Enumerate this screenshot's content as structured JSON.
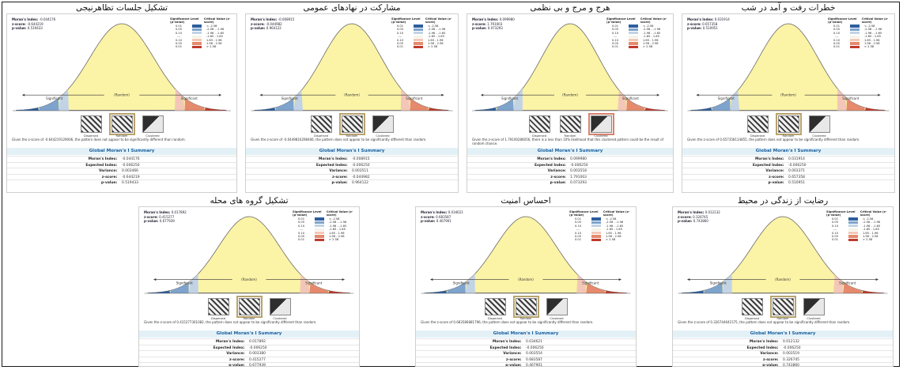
{
  "chart_data": [
    {
      "type": "other",
      "title": "خطرات رفت و آمد در شب",
      "stats": {
        "moransIndex": "0.031914",
        "zscore": "0.657358",
        "pvalue": "0.510951"
      },
      "legend": {
        "header_sig": "Significance Level (p-value)",
        "header_crit": "Critical Value (z-score)",
        "rows": [
          [
            "0.01",
            "< -2.58"
          ],
          [
            "0.05",
            "-2.58 - -1.96"
          ],
          [
            "0.10",
            "-1.96 - -1.65"
          ],
          [
            "---",
            "-1.65 - 1.65"
          ],
          [
            "0.10",
            "1.65 - 1.96"
          ],
          [
            "0.05",
            "1.96 - 2.58"
          ],
          [
            "0.01",
            "> 2.58"
          ]
        ]
      },
      "curve": {
        "significant_left": "Significant",
        "random": "(Random)",
        "significant_right": "Significant"
      },
      "maps": {
        "dispersed": "Dispersed",
        "random": "Random",
        "clustered": "Clustered",
        "selected": "random"
      },
      "note": "Given the z-score of 0.657358114855, the pattern does not appear to be significantly different than random.",
      "summary": {
        "title": "Global Moran's I Summary",
        "rows": [
          [
            "Moran's Index:",
            "0.031914"
          ],
          [
            "Expected Index:",
            "-0.006250"
          ],
          [
            "Variance:",
            "0.003371"
          ],
          [
            "z-score:",
            "0.657358"
          ],
          [
            "p-value:",
            "0.510951"
          ]
        ]
      }
    },
    {
      "type": "other",
      "title": "هرج و مرج و بی نظمی",
      "stats": {
        "moransIndex": "0.099980",
        "zscore": "1.791003",
        "pvalue": "0.073293"
      },
      "legend": {
        "header_sig": "Significance Level (p-value)",
        "header_crit": "Critical Value (z-score)",
        "rows": [
          [
            "0.01",
            "< -2.58"
          ],
          [
            "0.05",
            "-2.58 - -1.96"
          ],
          [
            "0.10",
            "-1.96 - -1.65"
          ],
          [
            "---",
            "-1.65 - 1.65"
          ],
          [
            "0.10",
            "1.65 - 1.96"
          ],
          [
            "0.05",
            "1.96 - 2.58"
          ],
          [
            "0.01",
            "> 2.58"
          ]
        ]
      },
      "curve": {
        "significant_left": "Significant",
        "random": "(Random)",
        "significant_right": "Significant"
      },
      "maps": {
        "dispersed": "Dispersed",
        "random": "Random",
        "clustered": "Clustered",
        "selected": "clustered"
      },
      "note": "Given the z-score of 1.79100286056, there is a less than 10% likelihood that this clustered pattern could be the result of random chance.",
      "summary": {
        "title": "Global Moran's I Summary",
        "rows": [
          [
            "Moran's Index:",
            "0.099980"
          ],
          [
            "Expected Index:",
            "-0.006250"
          ],
          [
            "Variance:",
            "0.003518"
          ],
          [
            "z-score:",
            "1.791003"
          ],
          [
            "p-value:",
            "0.073293"
          ]
        ]
      }
    },
    {
      "type": "other",
      "title": "مشارکت در نهادهای عمومی",
      "stats": {
        "moransIndex": "-0.008915",
        "zscore": "-0.044982",
        "pvalue": "0.964122"
      },
      "legend": {
        "header_sig": "Significance Level (p-value)",
        "header_crit": "Critical Value (z-score)",
        "rows": [
          [
            "0.01",
            "< -2.58"
          ],
          [
            "0.05",
            "-2.58 - -1.96"
          ],
          [
            "0.10",
            "-1.96 - -1.65"
          ],
          [
            "---",
            "-1.65 - 1.65"
          ],
          [
            "0.10",
            "1.65 - 1.96"
          ],
          [
            "0.05",
            "1.96 - 2.58"
          ],
          [
            "0.01",
            "> 2.58"
          ]
        ]
      },
      "curve": {
        "significant_left": "Significant",
        "random": "(Random)",
        "significant_right": "Significant"
      },
      "maps": {
        "dispersed": "Dispersed",
        "random": "Random",
        "clustered": "Clustered",
        "selected": "random"
      },
      "note": "Given the z-score of -0.0449816298406, the pattern does not appear to be significantly different than random.",
      "summary": {
        "title": "Global Moran's I Summary",
        "rows": [
          [
            "Moran's Index:",
            "-0.008915"
          ],
          [
            "Expected Index:",
            "-0.006250"
          ],
          [
            "Variance:",
            "0.003511"
          ],
          [
            "z-score:",
            "-0.044982"
          ],
          [
            "p-value:",
            "0.964122"
          ]
        ]
      }
    },
    {
      "type": "other",
      "title": "تشکیل جلسات تظاهرنیجی",
      "stats": {
        "moransIndex": "-0.044176",
        "zscore": "-0.644219",
        "pvalue": "0.519433"
      },
      "legend": {
        "header_sig": "Significance Level (p-value)",
        "header_crit": "Critical Value (z-score)",
        "rows": [
          [
            "0.01",
            "< -2.58"
          ],
          [
            "0.05",
            "-2.58 - -1.96"
          ],
          [
            "0.10",
            "-1.96 - -1.65"
          ],
          [
            "---",
            "-1.65 - 1.65"
          ],
          [
            "0.10",
            "1.65 - 1.96"
          ],
          [
            "0.05",
            "1.96 - 2.58"
          ],
          [
            "0.01",
            "> 2.58"
          ]
        ]
      },
      "curve": {
        "significant_left": "Significant",
        "random": "(Random)",
        "significant_right": "Significant"
      },
      "maps": {
        "dispersed": "Dispersed",
        "random": "Random",
        "clustered": "Clustered",
        "selected": "random"
      },
      "note": "Given the z-score of -0.644219129006, the pattern does not appear to be significantly different than random.",
      "summary": {
        "title": "Global Moran's I Summary",
        "rows": [
          [
            "Moran's Index:",
            "-0.044176"
          ],
          [
            "Expected Index:",
            "-0.006250"
          ],
          [
            "Variance:",
            "0.003466"
          ],
          [
            "z-score:",
            "-0.644219"
          ],
          [
            "p-value:",
            "0.519433"
          ]
        ]
      }
    },
    {
      "type": "other",
      "title": "رضایت از زندگی در محیط",
      "stats": {
        "moransIndex": "0.012132",
        "zscore": "0.326745",
        "pvalue": "0.743860"
      },
      "legend": {
        "header_sig": "Significance Level (p-value)",
        "header_crit": "Critical Value (z-score)",
        "rows": [
          [
            "0.01",
            "< -2.58"
          ],
          [
            "0.05",
            "-2.58 - -1.96"
          ],
          [
            "0.10",
            "-1.96 - -1.65"
          ],
          [
            "---",
            "-1.65 - 1.65"
          ],
          [
            "0.10",
            "1.65 - 1.96"
          ],
          [
            "0.05",
            "1.96 - 2.58"
          ],
          [
            "0.01",
            "> 2.58"
          ]
        ]
      },
      "curve": {
        "significant_left": "Significant",
        "random": "(Random)",
        "significant_right": "Significant"
      },
      "maps": {
        "dispersed": "Dispersed",
        "random": "Random",
        "clustered": "Clustered",
        "selected": "random"
      },
      "note": "Given the z-score of 0.326744641575, the pattern does not appear to be significantly different than random.",
      "summary": {
        "title": "Global Moran's I Summary",
        "rows": [
          [
            "Moran's Index:",
            "0.012132"
          ],
          [
            "Expected Index:",
            "-0.006250"
          ],
          [
            "Variance:",
            "0.003519"
          ],
          [
            "z-score:",
            "0.326745"
          ],
          [
            "p-value:",
            "0.743860"
          ]
        ]
      }
    },
    {
      "type": "other",
      "title": "احساس امنیت",
      "stats": {
        "moransIndex": "0.034621",
        "zscore": "0.683587",
        "pvalue": "0.467901"
      },
      "legend": {
        "header_sig": "Significance Level (p-value)",
        "header_crit": "Critical Value (z-score)",
        "rows": [
          [
            "0.01",
            "< -2.58"
          ],
          [
            "0.05",
            "-2.58 - -1.96"
          ],
          [
            "0.10",
            "-1.96 - -1.65"
          ],
          [
            "---",
            "-1.65 - 1.65"
          ],
          [
            "0.10",
            "1.65 - 1.96"
          ],
          [
            "0.05",
            "1.96 - 2.58"
          ],
          [
            "0.01",
            "> 2.58"
          ]
        ]
      },
      "curve": {
        "significant_left": "Significant",
        "random": "(Random)",
        "significant_right": "Significant"
      },
      "maps": {
        "dispersed": "Dispersed",
        "random": "Random",
        "clustered": "Clustered",
        "selected": "random"
      },
      "note": "Given the z-score of 0.683586881796, the pattern does not appear to be significantly different than random.",
      "summary": {
        "title": "Global Moran's I Summary",
        "rows": [
          [
            "Moran's Index:",
            "0.034621"
          ],
          [
            "Expected Index:",
            "-0.006250"
          ],
          [
            "Variance:",
            "0.003554"
          ],
          [
            "z-score:",
            "0.683587"
          ],
          [
            "p-value:",
            "0.467901"
          ]
        ]
      }
    },
    {
      "type": "other",
      "title": "تشکیل گروه های محله",
      "stats": {
        "moransIndex": "0.017892",
        "zscore": "0.415277",
        "pvalue": "0.677939"
      },
      "legend": {
        "header_sig": "Significance Level (p-value)",
        "header_crit": "Critical Value (z-score)",
        "rows": [
          [
            "0.01",
            "< -2.58"
          ],
          [
            "0.05",
            "-2.58 - -1.96"
          ],
          [
            "0.10",
            "-1.96 - -1.65"
          ],
          [
            "---",
            "-1.65 - 1.65"
          ],
          [
            "0.10",
            "1.65 - 1.96"
          ],
          [
            "0.05",
            "1.96 - 2.58"
          ],
          [
            "0.01",
            "> 2.58"
          ]
        ]
      },
      "curve": {
        "significant_left": "Significant",
        "random": "(Random)",
        "significant_right": "Significant"
      },
      "maps": {
        "dispersed": "Dispersed",
        "random": "Random",
        "clustered": "Clustered",
        "selected": "random"
      },
      "note": "Given the z-score of 0.415277301082, the pattern does not appear to be significantly different than random.",
      "summary": {
        "title": "Global Moran's I Summary",
        "rows": [
          [
            "Moran's Index:",
            "0.017892"
          ],
          [
            "Expected Index:",
            "-0.006250"
          ],
          [
            "Variance:",
            "0.003380"
          ],
          [
            "z-score:",
            "0.415277"
          ],
          [
            "p-value:",
            "0.677939"
          ]
        ]
      }
    }
  ],
  "colors": {
    "bell_fill": "#fbf3a6",
    "bell_stroke": "#6b6b6b",
    "legend_swatches": [
      "#2d5e9e",
      "#7ea3cc",
      "#c2d3e6",
      "#f3f3e8",
      "#f3c7b7",
      "#e58a6d",
      "#c0392b"
    ],
    "summary_title": "#1a5f9e",
    "summary_bg": "#e3f1f7",
    "selected_random": "#b8a36e",
    "selected_clustered": "#d9826d"
  }
}
